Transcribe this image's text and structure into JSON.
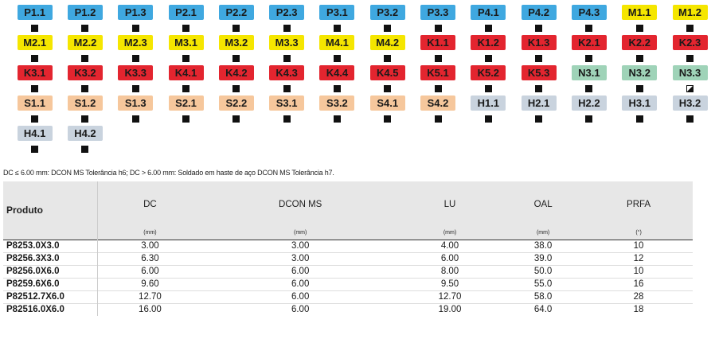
{
  "colors": {
    "P": "#3fa8e0",
    "M": "#f5e600",
    "K": "#e3252f",
    "N": "#9fd3b8",
    "S": "#f6c79c",
    "H": "#c9d3de"
  },
  "grades": [
    [
      {
        "label": "P1.1",
        "group": "P",
        "mark": "full"
      },
      {
        "label": "P1.2",
        "group": "P",
        "mark": "full"
      },
      {
        "label": "P1.3",
        "group": "P",
        "mark": "full"
      },
      {
        "label": "P2.1",
        "group": "P",
        "mark": "full"
      },
      {
        "label": "P2.2",
        "group": "P",
        "mark": "full"
      },
      {
        "label": "P2.3",
        "group": "P",
        "mark": "full"
      },
      {
        "label": "P3.1",
        "group": "P",
        "mark": "full"
      },
      {
        "label": "P3.2",
        "group": "P",
        "mark": "full"
      },
      {
        "label": "P3.3",
        "group": "P",
        "mark": "full"
      },
      {
        "label": "P4.1",
        "group": "P",
        "mark": "full"
      },
      {
        "label": "P4.2",
        "group": "P",
        "mark": "full"
      },
      {
        "label": "P4.3",
        "group": "P",
        "mark": "full"
      },
      {
        "label": "M1.1",
        "group": "M",
        "mark": "full"
      },
      {
        "label": "M1.2",
        "group": "M",
        "mark": "full"
      }
    ],
    [
      {
        "label": "M2.1",
        "group": "M",
        "mark": "full"
      },
      {
        "label": "M2.2",
        "group": "M",
        "mark": "full"
      },
      {
        "label": "M2.3",
        "group": "M",
        "mark": "full"
      },
      {
        "label": "M3.1",
        "group": "M",
        "mark": "full"
      },
      {
        "label": "M3.2",
        "group": "M",
        "mark": "full"
      },
      {
        "label": "M3.3",
        "group": "M",
        "mark": "full"
      },
      {
        "label": "M4.1",
        "group": "M",
        "mark": "full"
      },
      {
        "label": "M4.2",
        "group": "M",
        "mark": "full"
      },
      {
        "label": "K1.1",
        "group": "K",
        "mark": "full"
      },
      {
        "label": "K1.2",
        "group": "K",
        "mark": "full"
      },
      {
        "label": "K1.3",
        "group": "K",
        "mark": "full"
      },
      {
        "label": "K2.1",
        "group": "K",
        "mark": "full"
      },
      {
        "label": "K2.2",
        "group": "K",
        "mark": "full"
      },
      {
        "label": "K2.3",
        "group": "K",
        "mark": "full"
      }
    ],
    [
      {
        "label": "K3.1",
        "group": "K",
        "mark": "full"
      },
      {
        "label": "K3.2",
        "group": "K",
        "mark": "full"
      },
      {
        "label": "K3.3",
        "group": "K",
        "mark": "full"
      },
      {
        "label": "K4.1",
        "group": "K",
        "mark": "full"
      },
      {
        "label": "K4.2",
        "group": "K",
        "mark": "full"
      },
      {
        "label": "K4.3",
        "group": "K",
        "mark": "full"
      },
      {
        "label": "K4.4",
        "group": "K",
        "mark": "full"
      },
      {
        "label": "K4.5",
        "group": "K",
        "mark": "full"
      },
      {
        "label": "K5.1",
        "group": "K",
        "mark": "full"
      },
      {
        "label": "K5.2",
        "group": "K",
        "mark": "full"
      },
      {
        "label": "K5.3",
        "group": "K",
        "mark": "full"
      },
      {
        "label": "N3.1",
        "group": "N",
        "mark": "full"
      },
      {
        "label": "N3.2",
        "group": "N",
        "mark": "full"
      },
      {
        "label": "N3.3",
        "group": "N",
        "mark": "half"
      }
    ],
    [
      {
        "label": "S1.1",
        "group": "S",
        "mark": "full"
      },
      {
        "label": "S1.2",
        "group": "S",
        "mark": "full"
      },
      {
        "label": "S1.3",
        "group": "S",
        "mark": "full"
      },
      {
        "label": "S2.1",
        "group": "S",
        "mark": "full"
      },
      {
        "label": "S2.2",
        "group": "S",
        "mark": "full"
      },
      {
        "label": "S3.1",
        "group": "S",
        "mark": "full"
      },
      {
        "label": "S3.2",
        "group": "S",
        "mark": "full"
      },
      {
        "label": "S4.1",
        "group": "S",
        "mark": "full"
      },
      {
        "label": "S4.2",
        "group": "S",
        "mark": "full"
      },
      {
        "label": "H1.1",
        "group": "H",
        "mark": "full"
      },
      {
        "label": "H2.1",
        "group": "H",
        "mark": "full"
      },
      {
        "label": "H2.2",
        "group": "H",
        "mark": "full"
      },
      {
        "label": "H3.1",
        "group": "H",
        "mark": "full"
      },
      {
        "label": "H3.2",
        "group": "H",
        "mark": "full"
      }
    ],
    [
      {
        "label": "H4.1",
        "group": "H",
        "mark": "full"
      },
      {
        "label": "H4.2",
        "group": "H",
        "mark": "full"
      }
    ]
  ],
  "note": "DC ≤ 6.00 mm: DCON MS Tolerância h6; DC > 6.00 mm: Soldado em haste de aço DCON MS Tolerância h7.",
  "table": {
    "product_header": "Produto",
    "columns": [
      {
        "label": "DC",
        "unit": "(mm)"
      },
      {
        "label": "DCON MS",
        "unit": "(mm)"
      },
      {
        "label": "LU",
        "unit": "(mm)"
      },
      {
        "label": "OAL",
        "unit": "(mm)"
      },
      {
        "label": "PRFA",
        "unit": "(°)"
      }
    ],
    "rows": [
      {
        "product": "P8253.0X3.0",
        "values": [
          "3.00",
          "3.00",
          "4.00",
          "38.0",
          "10"
        ]
      },
      {
        "product": "P8256.3X3.0",
        "values": [
          "6.30",
          "3.00",
          "6.00",
          "39.0",
          "12"
        ]
      },
      {
        "product": "P8256.0X6.0",
        "values": [
          "6.00",
          "6.00",
          "8.00",
          "50.0",
          "10"
        ]
      },
      {
        "product": "P8259.6X6.0",
        "values": [
          "9.60",
          "6.00",
          "9.50",
          "55.0",
          "16"
        ]
      },
      {
        "product": "P82512.7X6.0",
        "values": [
          "12.70",
          "6.00",
          "12.70",
          "58.0",
          "28"
        ]
      },
      {
        "product": "P82516.0X6.0",
        "values": [
          "16.00",
          "6.00",
          "19.00",
          "64.0",
          "18"
        ]
      }
    ]
  }
}
